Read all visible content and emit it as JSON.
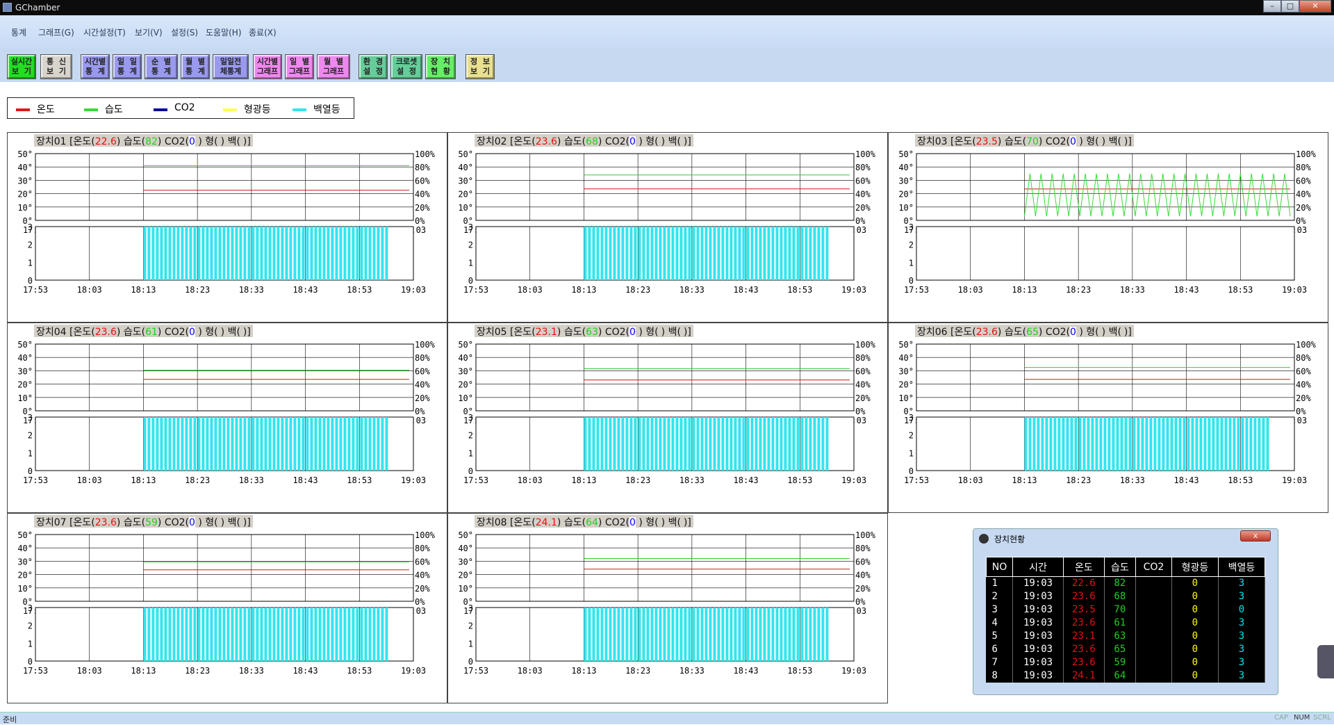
{
  "window": {
    "title": "GChamber"
  },
  "menu": [
    "통계",
    "그래프(G)",
    "시간설정(T)",
    "보기(V)",
    "설정(S)",
    "도움말(H)",
    "종료(X)"
  ],
  "toolbar": [
    {
      "label": "실시간\n보  기",
      "color": "#22dd22"
    },
    {
      "label": "통  신\n보  기",
      "color": "#d8d4cc"
    },
    {
      "label": "시간별\n통  계",
      "color": "#9999ee"
    },
    {
      "label": "일  일\n통  계",
      "color": "#9999ee"
    },
    {
      "label": "순  별\n통  계",
      "color": "#9999ee"
    },
    {
      "label": "월  별\n통  계",
      "color": "#9999ee"
    },
    {
      "label": "일일전\n체통계",
      "color": "#9999ee"
    },
    {
      "label": "시간별\n그래프",
      "color": "#ee88ee"
    },
    {
      "label": "일  별\n그래프",
      "color": "#ee88ee"
    },
    {
      "label": "월  별\n그래프",
      "color": "#ee88ee"
    },
    {
      "label": "환  경\n설  정",
      "color": "#66cc99"
    },
    {
      "label": "크로셋\n설  정",
      "color": "#66cc99"
    },
    {
      "label": "장  치\n현  황",
      "color": "#66ee66"
    },
    {
      "label": "정  보\n보  기",
      "color": "#e8e090"
    }
  ],
  "legend": [
    {
      "label": "온도",
      "color": "#e01818"
    },
    {
      "label": "습도",
      "color": "#33dd33"
    },
    {
      "label": "CO2",
      "color": "#000099"
    },
    {
      "label": "형광등",
      "color": "#ffff55"
    },
    {
      "label": "백열등",
      "color": "#33e5ee"
    }
  ],
  "axes": {
    "temp_ticks": [
      "50°",
      "40°",
      "30°",
      "20°",
      "10°",
      "0°"
    ],
    "hum_ticks": [
      "100%",
      "80%",
      "60%",
      "40%",
      "20%",
      "0%"
    ],
    "state_ticks": [
      "3",
      "2",
      "1",
      "0"
    ],
    "time_ticks": [
      "17:53",
      "18:03",
      "18:13",
      "18:23",
      "18:33",
      "18:43",
      "18:53",
      "19:03"
    ]
  },
  "panel_text": {
    "temp_label": "온도",
    "hum_label": "습도",
    "co2_label": "CO2",
    "fl_label": "형",
    "inc_label": "백"
  },
  "devices": [
    {
      "name": "장치01",
      "temp": "22.6",
      "hum": "82",
      "co2": "0",
      "fl": "",
      "inc": "",
      "start": "18:13",
      "temp_avg": 22.6,
      "hum_avg": 82,
      "inc_level": 3
    },
    {
      "name": "장치02",
      "temp": "23.6",
      "hum": "68",
      "co2": "0",
      "fl": "",
      "inc": "",
      "start": "18:13",
      "temp_avg": 23.6,
      "hum_avg": 68,
      "inc_level": 3
    },
    {
      "name": "장치03",
      "temp": "23.5",
      "hum": "70",
      "co2": "0",
      "fl": "",
      "inc": "",
      "start": "18:13",
      "temp_avg": 23.5,
      "hum_avg": 70,
      "hum_oscillating": true,
      "inc_level": 0
    },
    {
      "name": "장치04",
      "temp": "23.6",
      "hum": "61",
      "co2": "0",
      "fl": "",
      "inc": "",
      "start": "18:13",
      "temp_avg": 23.6,
      "hum_avg": 61,
      "inc_level": 3
    },
    {
      "name": "장치05",
      "temp": "23.1",
      "hum": "63",
      "co2": "0",
      "fl": "",
      "inc": "",
      "start": "18:13",
      "temp_avg": 23.1,
      "hum_avg": 63,
      "inc_level": 3
    },
    {
      "name": "장치06",
      "temp": "23.6",
      "hum": "65",
      "co2": "0",
      "fl": "",
      "inc": "",
      "start": "18:13",
      "temp_avg": 23.6,
      "hum_avg": 65,
      "inc_level": 3
    },
    {
      "name": "장치07",
      "temp": "23.6",
      "hum": "59",
      "co2": "0",
      "fl": "",
      "inc": "",
      "start": "18:13",
      "temp_avg": 23.6,
      "hum_avg": 59,
      "inc_level": 3
    },
    {
      "name": "장치08",
      "temp": "24.1",
      "hum": "64",
      "co2": "0",
      "fl": "",
      "inc": "",
      "start": "18:13",
      "temp_avg": 24.1,
      "hum_avg": 64,
      "inc_level": 3
    }
  ],
  "status_window": {
    "title": "장치현황",
    "close_label": "x",
    "headers": [
      "NO",
      "시간",
      "온도",
      "습도",
      "CO2",
      "형광등",
      "백열등"
    ],
    "rows": [
      [
        "1",
        "19:03",
        "22.6",
        "82",
        "",
        "0",
        "3"
      ],
      [
        "2",
        "19:03",
        "23.6",
        "68",
        "",
        "0",
        "3"
      ],
      [
        "3",
        "19:03",
        "23.5",
        "70",
        "",
        "0",
        "0"
      ],
      [
        "4",
        "19:03",
        "23.6",
        "61",
        "",
        "0",
        "3"
      ],
      [
        "5",
        "19:03",
        "23.1",
        "63",
        "",
        "0",
        "3"
      ],
      [
        "6",
        "19:03",
        "23.6",
        "65",
        "",
        "0",
        "3"
      ],
      [
        "7",
        "19:03",
        "23.6",
        "59",
        "",
        "0",
        "3"
      ],
      [
        "8",
        "19:03",
        "24.1",
        "64",
        "",
        "0",
        "3"
      ]
    ]
  },
  "statusbar": {
    "text": "준비",
    "indicators": [
      "CAP",
      "NUM",
      "SCRL"
    ]
  },
  "chart_data": {
    "type": "line",
    "note_series": "per-device time series, temperature (°C, left axis 0-50) and humidity (%, right axis 0-100), plus lamp state (0-3)",
    "x": [
      "17:53",
      "18:03",
      "18:13",
      "18:23",
      "18:33",
      "18:43",
      "18:53",
      "19:03"
    ],
    "ylim_temp": [
      0,
      50
    ],
    "ylim_hum": [
      0,
      100
    ],
    "ylim_state": [
      0,
      3
    ]
  }
}
